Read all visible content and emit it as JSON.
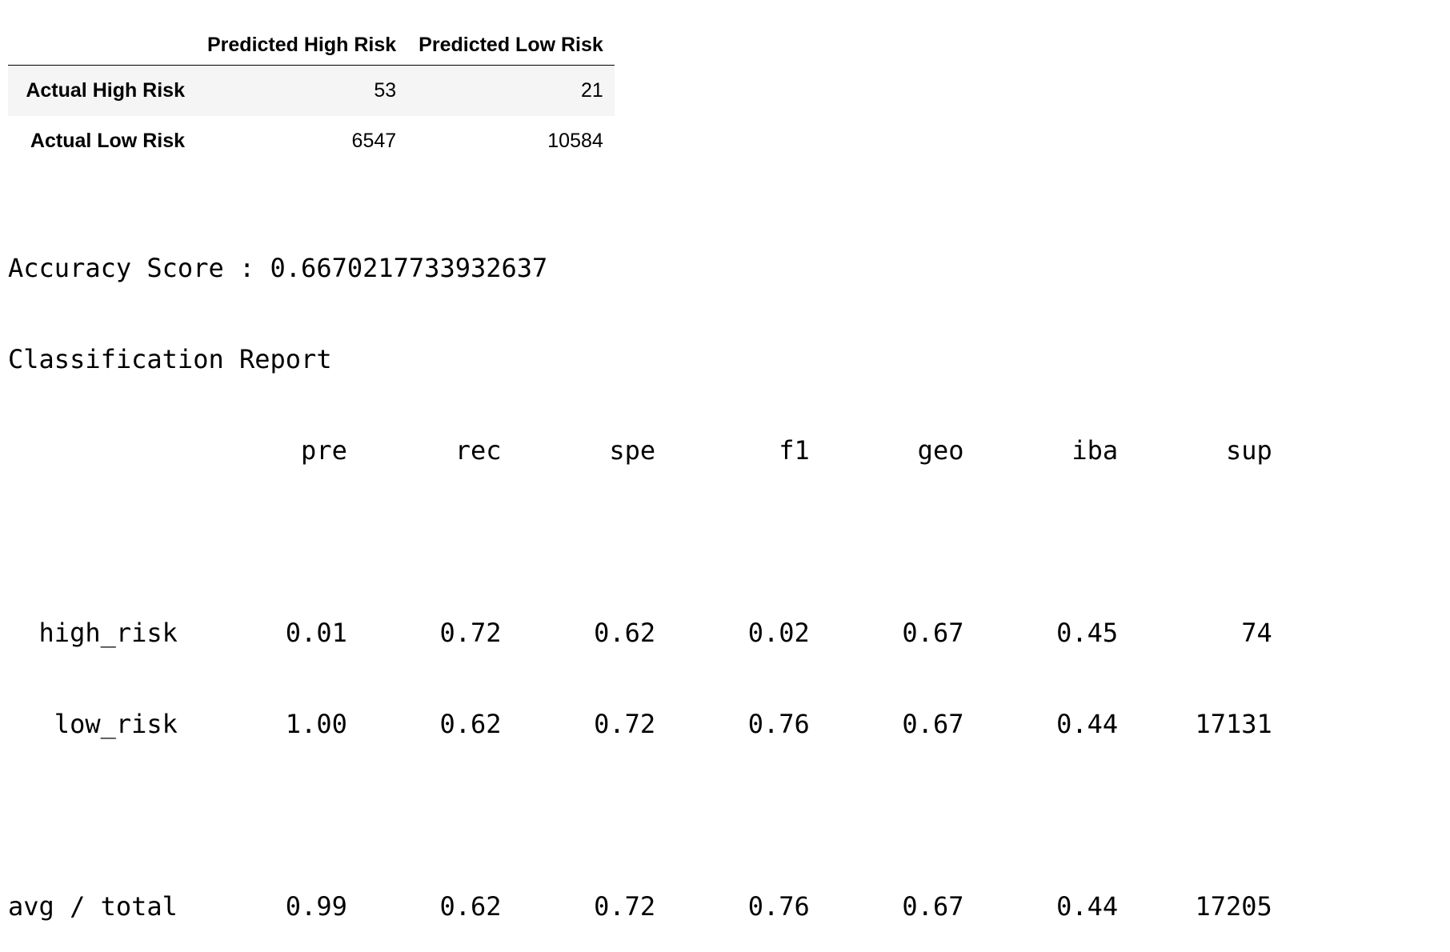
{
  "confusion_matrix": {
    "columns": [
      "Predicted High Risk",
      "Predicted Low Risk"
    ],
    "rows": [
      {
        "label": "Actual High Risk",
        "values": [
          "53",
          "21"
        ]
      },
      {
        "label": "Actual Low Risk",
        "values": [
          "6547",
          "10584"
        ]
      }
    ]
  },
  "output": {
    "lines": [
      "Accuracy Score : 0.6670217733932637",
      "Classification Report",
      "                   pre       rec       spe        f1       geo       iba       sup",
      "",
      "  high_risk       0.01      0.72      0.62      0.02      0.67      0.45        74",
      "   low_risk       1.00      0.62      0.72      0.76      0.67      0.44     17131",
      "",
      "avg / total       0.99      0.62      0.72      0.76      0.67      0.44     17205"
    ]
  }
}
